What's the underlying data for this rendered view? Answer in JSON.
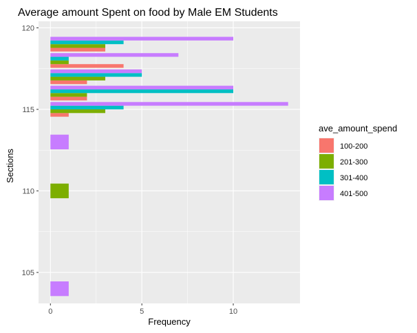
{
  "chart_data": {
    "type": "bar",
    "orientation": "horizontal",
    "title": "Average amount Spent on food by Male EM Students",
    "xlabel": "Frequency",
    "ylabel": "Sections",
    "xlim": [
      -0.65,
      13.65
    ],
    "ylim": [
      103.1,
      120.4
    ],
    "xticks": [
      0,
      5,
      10
    ],
    "xtick_labels": [
      "0",
      "5",
      "10"
    ],
    "yticks": [
      105,
      110,
      115,
      120
    ],
    "ytick_labels": [
      "105",
      "110",
      "115",
      "120"
    ],
    "grid": true,
    "legend_title": "ave_amount_spend",
    "legend_position": "right",
    "series": [
      {
        "name": "100-200",
        "color": "#F8766D"
      },
      {
        "name": "201-300",
        "color": "#7CAE00"
      },
      {
        "name": "301-400",
        "color": "#00BFC4"
      },
      {
        "name": "401-500",
        "color": "#C77CFF"
      }
    ],
    "bars": [
      {
        "section": 104,
        "series": "401-500",
        "value": 1
      },
      {
        "section": 110,
        "series": "201-300",
        "value": 1
      },
      {
        "section": 113,
        "series": "401-500",
        "value": 1
      },
      {
        "section": 115,
        "series": "100-200",
        "value": 1
      },
      {
        "section": 115,
        "series": "201-300",
        "value": 3
      },
      {
        "section": 115,
        "series": "301-400",
        "value": 4
      },
      {
        "section": 115,
        "series": "401-500",
        "value": 13
      },
      {
        "section": 116,
        "series": "100-200",
        "value": 2
      },
      {
        "section": 116,
        "series": "201-300",
        "value": 2
      },
      {
        "section": 116,
        "series": "301-400",
        "value": 10
      },
      {
        "section": 116,
        "series": "401-500",
        "value": 10
      },
      {
        "section": 117,
        "series": "100-200",
        "value": 2
      },
      {
        "section": 117,
        "series": "201-300",
        "value": 3
      },
      {
        "section": 117,
        "series": "301-400",
        "value": 5
      },
      {
        "section": 117,
        "series": "401-500",
        "value": 5
      },
      {
        "section": 118,
        "series": "100-200",
        "value": 4
      },
      {
        "section": 118,
        "series": "201-300",
        "value": 1
      },
      {
        "section": 118,
        "series": "301-400",
        "value": 1
      },
      {
        "section": 118,
        "series": "401-500",
        "value": 7
      },
      {
        "section": 119,
        "series": "100-200",
        "value": 3
      },
      {
        "section": 119,
        "series": "201-300",
        "value": 3
      },
      {
        "section": 119,
        "series": "301-400",
        "value": 4
      },
      {
        "section": 119,
        "series": "401-500",
        "value": 10
      }
    ]
  }
}
